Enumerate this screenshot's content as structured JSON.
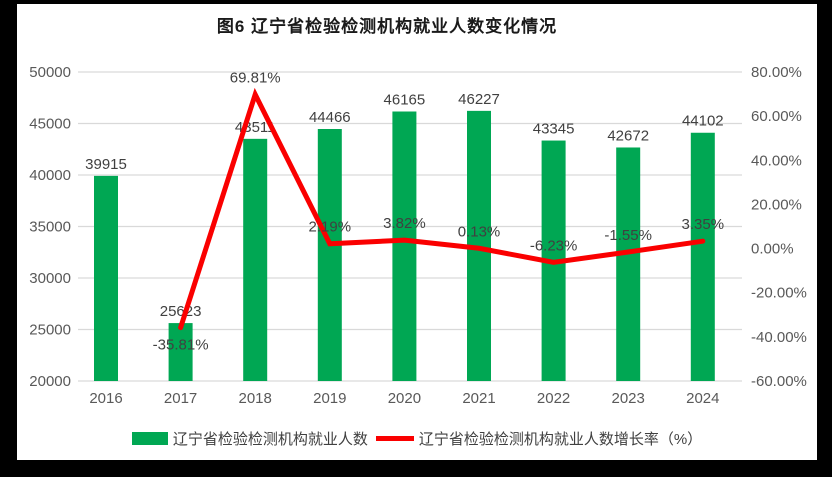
{
  "window": {
    "background_color": "#000000",
    "sheet_color": "#ffffff"
  },
  "chart_data": {
    "type": "bar",
    "title": "图6  辽宁省检验检测机构就业人数变化情况",
    "categories": [
      "2016",
      "2017",
      "2018",
      "2019",
      "2020",
      "2021",
      "2022",
      "2023",
      "2024"
    ],
    "series": [
      {
        "name": "辽宁省检验检测机构就业人数",
        "type": "bar",
        "color": "#00A753",
        "values": [
          39915,
          25623,
          43511,
          44466,
          46165,
          46227,
          43345,
          42672,
          44102
        ],
        "labels": [
          "39915",
          "25623",
          "43511",
          "44466",
          "46165",
          "46227",
          "43345",
          "42672",
          "44102"
        ]
      },
      {
        "name": "辽宁省检验检测机构就业人数增长率（%）",
        "type": "line",
        "color": "#FA0000",
        "values": [
          null,
          -35.81,
          69.81,
          2.19,
          3.82,
          0.13,
          -6.23,
          -1.55,
          3.35
        ],
        "labels": [
          "",
          "-35.81%",
          "69.81%",
          "2.19%",
          "3.82%",
          "0.13%",
          "-6.23%",
          "-1.55%",
          "3.35%"
        ]
      }
    ],
    "left_axis": {
      "min": 20000,
      "max": 50000,
      "step": 5000,
      "tick_labels": [
        "50000",
        "45000",
        "40000",
        "35000",
        "30000",
        "25000",
        "20000"
      ]
    },
    "right_axis": {
      "min": -60,
      "max": 80,
      "step": 20,
      "tick_labels": [
        "80.00%",
        "60.00%",
        "40.00%",
        "20.00%",
        "0.00%",
        "-20.00%",
        "-40.00%",
        "-60.00%"
      ]
    },
    "grid": true,
    "legend_position": "bottom",
    "colors": {
      "grid": "#D9D9D9",
      "axis_text": "#595959",
      "label_text": "#404040",
      "title_text": "#1A1A1A"
    }
  }
}
